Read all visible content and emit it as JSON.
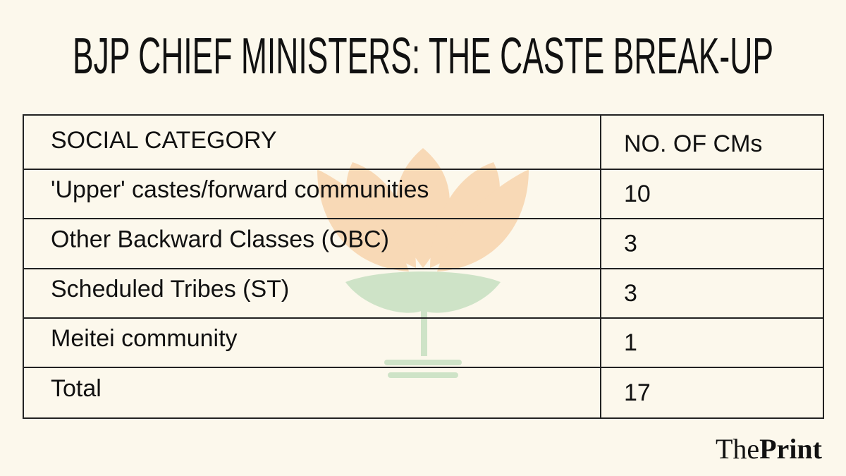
{
  "header": {
    "title": "BJP CHIEF MINISTERS: THE CASTE BREAK-UP"
  },
  "table": {
    "columns": [
      "SOCIAL CATEGORY",
      "NO. OF CMs"
    ],
    "rows": [
      [
        "'Upper' castes/forward communities",
        10
      ],
      [
        "Other Backward Classes (OBC)",
        3
      ],
      [
        "Scheduled Tribes (ST)",
        3
      ],
      [
        "Meitei community",
        1
      ],
      [
        "Total",
        17
      ]
    ]
  },
  "footer": {
    "logo": [
      "The",
      "Print"
    ]
  }
}
